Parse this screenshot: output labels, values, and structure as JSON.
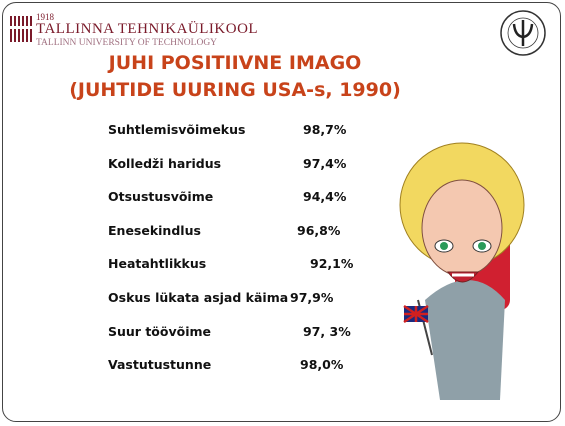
{
  "header": {
    "year": "1918",
    "university": "TALLINNA TEHNIKAÜLIKOOL",
    "university_en": "TALLINN UNIVERSITY OF TECHNOLOGY"
  },
  "title": {
    "line1": "JUHI POSITIIVNE IMAGO",
    "line2": "(JUHTIDE UURING USA-s, 1990)"
  },
  "items": [
    {
      "label": "Suhtlemisvõimekus",
      "value": "98,7%"
    },
    {
      "label": "Kolledži haridus",
      "value": "97,4%"
    },
    {
      "label": "Otsustusvõime",
      "value": "94,4%"
    },
    {
      "label": "Enesekindlus",
      "value": "96,8%"
    },
    {
      "label": "Heatahtlikkus",
      "value": "92,1%"
    },
    {
      "label": "Oskus lükata asjad käima",
      "value": "97,9%"
    },
    {
      "label": "Suur töövõime",
      "value": "97, 3%"
    },
    {
      "label": "Vastutustunne",
      "value": "98,0%"
    }
  ]
}
